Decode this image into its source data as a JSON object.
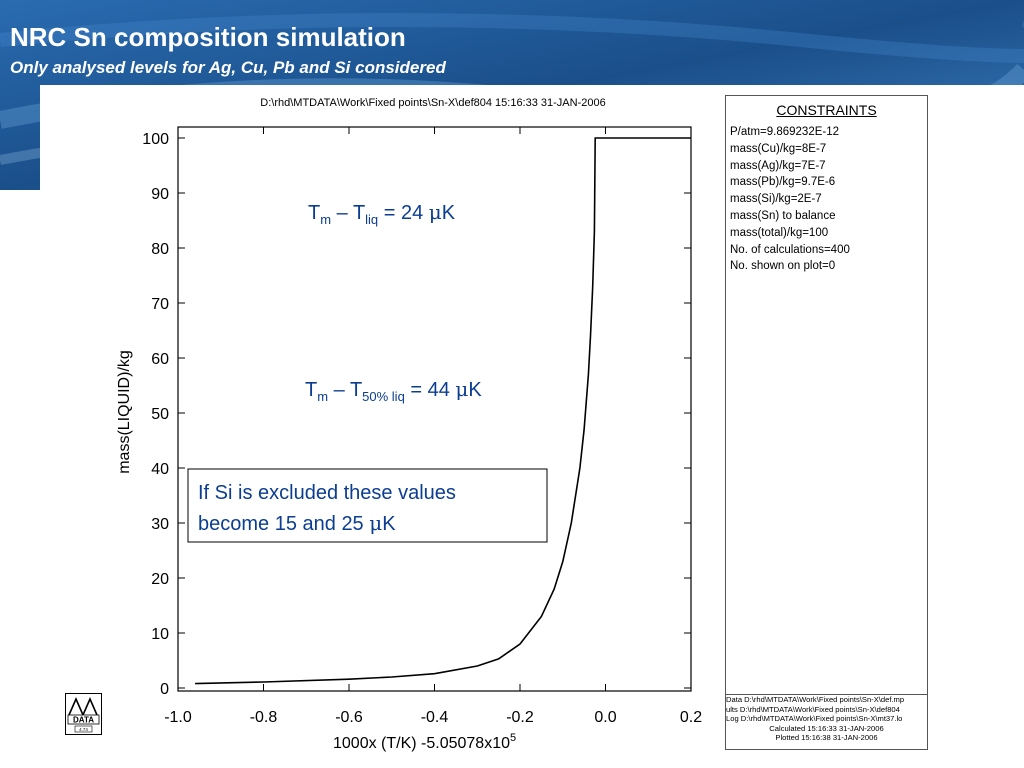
{
  "slide": {
    "title": "NRC Sn composition simulation",
    "subtitle": "Only analysed levels for Ag, Cu, Pb and Si considered"
  },
  "colors": {
    "header_blue": "#1a4f8a",
    "annotation_blue": "#0b3d91",
    "curve": "#000000"
  },
  "chart_data": {
    "type": "line",
    "file_header": "D:\\rhd\\MTDATA\\Work\\Fixed points\\Sn-X\\def804  15:16:33 31-JAN-2006",
    "xlabel_base": "1000x (T/K) -5.05078x10",
    "xlabel_exp": "5",
    "ylabel": "mass(LIQUID)/kg",
    "xlim": [
      -1.0,
      0.2
    ],
    "ylim": [
      0,
      100
    ],
    "xticks": [
      -1.0,
      -0.8,
      -0.6,
      -0.4,
      -0.2,
      0.0,
      0.2
    ],
    "xtick_labels": [
      "-1.0",
      "-0.8",
      "-0.6",
      "-0.4",
      "-0.2",
      "0.0",
      "0.2"
    ],
    "yticks": [
      0,
      10,
      20,
      30,
      40,
      50,
      60,
      70,
      80,
      90,
      100
    ],
    "ytick_labels": [
      "0",
      "10",
      "20",
      "30",
      "40",
      "50",
      "60",
      "70",
      "80",
      "90",
      "100"
    ],
    "series": [
      {
        "x": [
          -0.96,
          -0.8,
          -0.6,
          -0.5,
          -0.4,
          -0.3,
          -0.25,
          -0.2,
          -0.15,
          -0.12,
          -0.1,
          -0.08,
          -0.06,
          -0.05,
          -0.04,
          -0.035,
          -0.03,
          -0.026,
          -0.024,
          0.0,
          0.2
        ],
        "y": [
          0.8,
          1.1,
          1.6,
          2.0,
          2.6,
          4.0,
          5.3,
          8.0,
          13.0,
          18.0,
          23.0,
          30.0,
          40.0,
          47.0,
          57.0,
          64.0,
          73.0,
          83.0,
          100.0,
          100.0,
          100.0
        ]
      }
    ],
    "annotations": {
      "a1": {
        "base": "T",
        "sub1": "m",
        "mid": " – T",
        "sub2": "liq",
        "tail": " = 24 ",
        "mu": "μ",
        "unit": "K"
      },
      "a2": {
        "base": "T",
        "sub1": "m",
        "mid": " – T",
        "sub2": "50% liq",
        "tail": " = 44 ",
        "mu": "μ",
        "unit": "K"
      },
      "box_line1": "If Si is excluded these values",
      "box_line2_pre": "become 15 and 25 ",
      "box_mu": "μ",
      "box_unit": "K"
    }
  },
  "constraints": {
    "title": "CONSTRAINTS",
    "items": [
      "P/atm=9.869232E-12",
      "mass(Cu)/kg=8E-7",
      "mass(Ag)/kg=7E-7",
      "mass(Pb)/kg=9.7E-6",
      "mass(Si)/kg=2E-7",
      "mass(Sn) to balance",
      "mass(total)/kg=100",
      "No. of calculations=400",
      "No. shown on plot=0"
    ],
    "footer": [
      "Data D:\\rhd\\MTDATA\\Work\\Fixed points\\Sn-X\\def.mp",
      "ults D:\\rhd\\MTDATA\\Work\\Fixed points\\Sn-X\\def804",
      "Log D:\\rhd\\MTDATA\\Work\\Fixed points\\Sn-X\\mt37.lo",
      "Calculated 15:16:33 31-JAN-2006",
      "Plotted  15:16:38 31-JAN-2006"
    ]
  },
  "logo": {
    "text": "DATA",
    "version": "4.74",
    "icon": "mtdata-logo-icon"
  }
}
